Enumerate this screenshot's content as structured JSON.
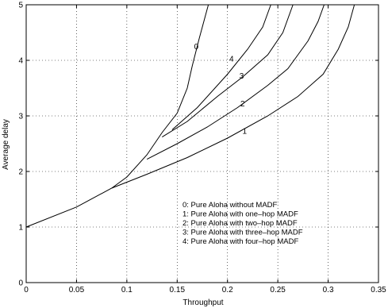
{
  "chart_data": {
    "type": "line",
    "title": "",
    "xlabel": "Throughput",
    "ylabel": "Average delay",
    "xlim": [
      0,
      0.35
    ],
    "ylim": [
      0,
      5
    ],
    "xticks": [
      0,
      0.05,
      0.1,
      0.15,
      0.2,
      0.25,
      0.3,
      0.35
    ],
    "xtick_labels": [
      "0",
      "0.05",
      "0.1",
      "0.15",
      "0.2",
      "0.25",
      "0.3",
      "0.35"
    ],
    "yticks": [
      0,
      1,
      2,
      3,
      4,
      5
    ],
    "ytick_labels": [
      "0",
      "1",
      "2",
      "3",
      "4",
      "5"
    ],
    "grid": true,
    "legend_placement": "lower-right",
    "legend": [
      "0: Pure Aloha without MADF",
      "1: Pure Aloha with one–hop MADF",
      "2: Pure Aloha with two–hop MADF",
      "3: Pure Aloha with three–hop MADF",
      "4: Pure Aloha with four–hop MADF"
    ],
    "series": [
      {
        "label": "0",
        "label_at": [
          0.169,
          4.2
        ],
        "points": [
          [
            0,
            1.0
          ],
          [
            0.05,
            1.36
          ],
          [
            0.085,
            1.7
          ],
          [
            0.1,
            1.9
          ],
          [
            0.12,
            2.3
          ],
          [
            0.135,
            2.7
          ],
          [
            0.15,
            3.05
          ],
          [
            0.16,
            3.5
          ],
          [
            0.165,
            3.9
          ],
          [
            0.172,
            4.4
          ],
          [
            0.178,
            4.8
          ],
          [
            0.181,
            5.0
          ]
        ]
      },
      {
        "label": "1",
        "label_at": [
          0.217,
          2.68
        ],
        "points": [
          [
            0.085,
            1.7
          ],
          [
            0.12,
            1.95
          ],
          [
            0.16,
            2.25
          ],
          [
            0.2,
            2.6
          ],
          [
            0.24,
            3.0
          ],
          [
            0.27,
            3.35
          ],
          [
            0.295,
            3.75
          ],
          [
            0.31,
            4.2
          ],
          [
            0.32,
            4.6
          ],
          [
            0.326,
            5.0
          ]
        ]
      },
      {
        "label": "2",
        "label_at": [
          0.215,
          3.17
        ],
        "points": [
          [
            0.12,
            2.22
          ],
          [
            0.15,
            2.5
          ],
          [
            0.18,
            2.8
          ],
          [
            0.21,
            3.15
          ],
          [
            0.24,
            3.55
          ],
          [
            0.26,
            3.85
          ],
          [
            0.28,
            4.35
          ],
          [
            0.29,
            4.7
          ],
          [
            0.296,
            5.0
          ]
        ]
      },
      {
        "label": "3",
        "label_at": [
          0.214,
          3.67
        ],
        "points": [
          [
            0.135,
            2.62
          ],
          [
            0.16,
            2.9
          ],
          [
            0.19,
            3.35
          ],
          [
            0.215,
            3.7
          ],
          [
            0.24,
            4.1
          ],
          [
            0.255,
            4.5
          ],
          [
            0.265,
            5.0
          ]
        ]
      },
      {
        "label": "4",
        "label_at": [
          0.204,
          3.98
        ],
        "points": [
          [
            0.145,
            2.75
          ],
          [
            0.17,
            3.15
          ],
          [
            0.2,
            3.75
          ],
          [
            0.22,
            4.2
          ],
          [
            0.235,
            4.6
          ],
          [
            0.243,
            5.0
          ]
        ]
      }
    ]
  }
}
